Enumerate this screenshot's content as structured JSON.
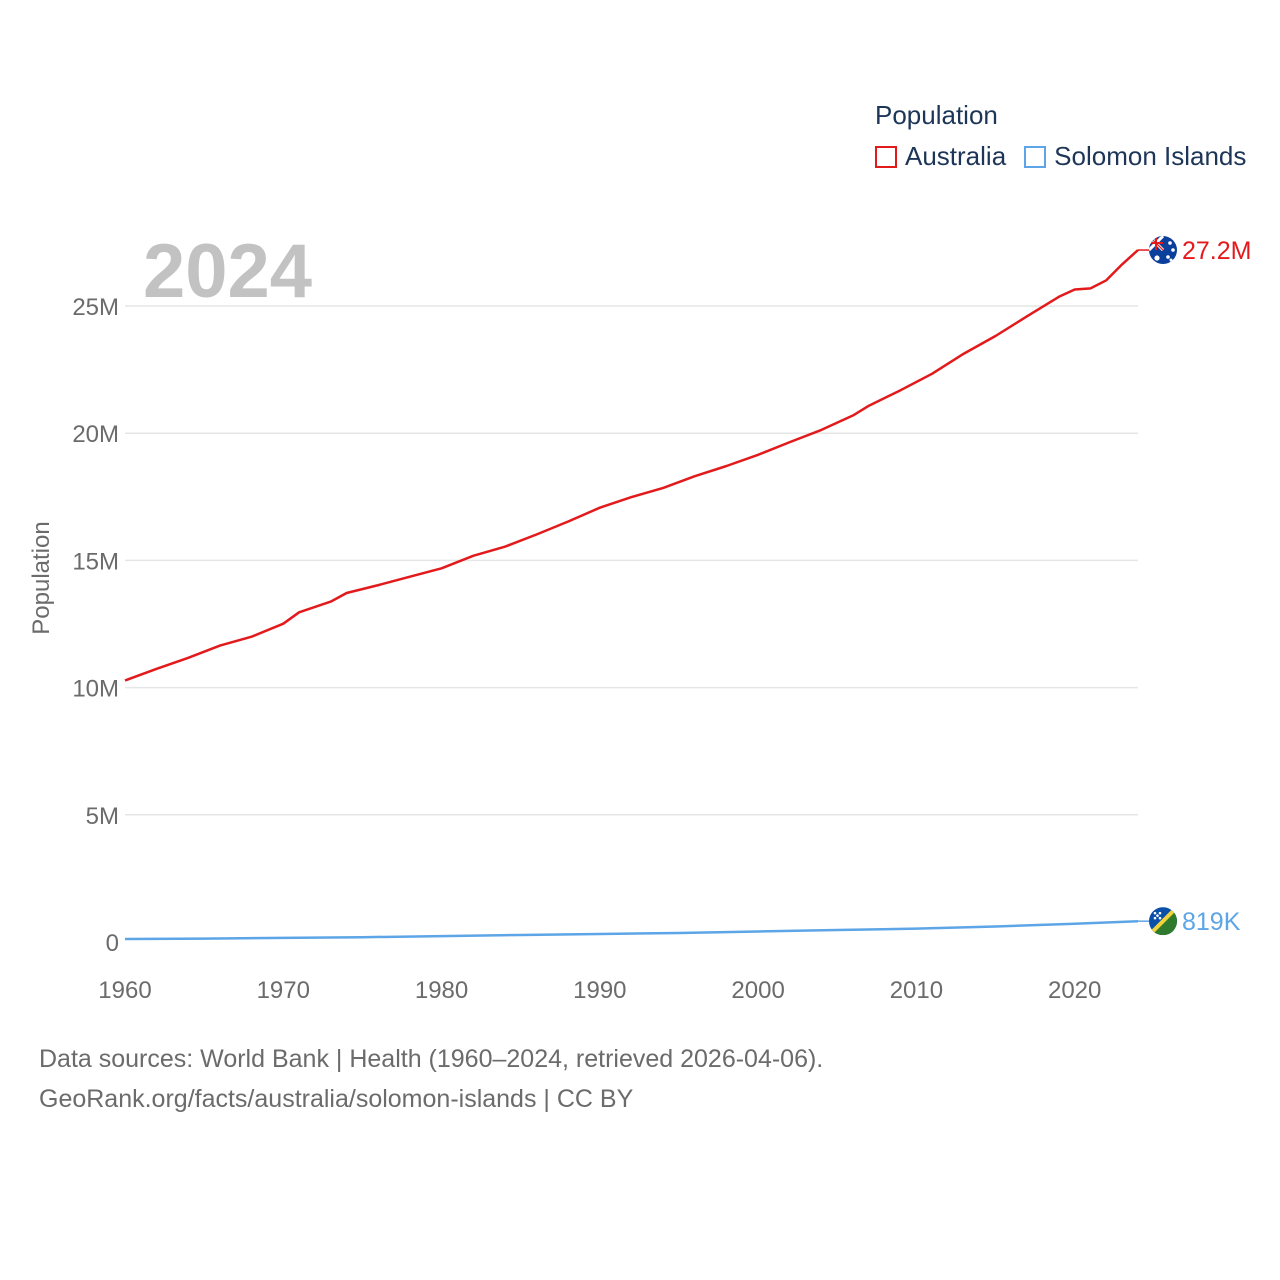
{
  "chart_data": {
    "type": "line",
    "current_year_label": "2024",
    "legend_title": "Population",
    "ylabel": "Population",
    "xlabel": "",
    "xlim": [
      1960,
      2024
    ],
    "ylim": [
      0,
      28000000
    ],
    "x_ticks": [
      1960,
      1970,
      1980,
      1990,
      2000,
      2010,
      2020
    ],
    "y_ticks": [
      {
        "value": 0,
        "label": "0"
      },
      {
        "value": 5000000,
        "label": "5M"
      },
      {
        "value": 10000000,
        "label": "10M"
      },
      {
        "value": 15000000,
        "label": "15M"
      },
      {
        "value": 20000000,
        "label": "20M"
      },
      {
        "value": 25000000,
        "label": "25M"
      }
    ],
    "series": [
      {
        "name": "Australia",
        "color": "#e31a1c",
        "end_label": "27.2M",
        "points": [
          [
            1960,
            10280000
          ],
          [
            1962,
            10740000
          ],
          [
            1964,
            11170000
          ],
          [
            1966,
            11650000
          ],
          [
            1968,
            12000000
          ],
          [
            1970,
            12510000
          ],
          [
            1971,
            12960000
          ],
          [
            1973,
            13380000
          ],
          [
            1974,
            13720000
          ],
          [
            1976,
            14030000
          ],
          [
            1978,
            14360000
          ],
          [
            1980,
            14690000
          ],
          [
            1982,
            15180000
          ],
          [
            1984,
            15540000
          ],
          [
            1986,
            16020000
          ],
          [
            1988,
            16530000
          ],
          [
            1990,
            17070000
          ],
          [
            1992,
            17490000
          ],
          [
            1994,
            17850000
          ],
          [
            1996,
            18310000
          ],
          [
            1998,
            18710000
          ],
          [
            2000,
            19150000
          ],
          [
            2002,
            19650000
          ],
          [
            2004,
            20130000
          ],
          [
            2006,
            20700000
          ],
          [
            2007,
            21080000
          ],
          [
            2009,
            21690000
          ],
          [
            2011,
            22340000
          ],
          [
            2013,
            23130000
          ],
          [
            2015,
            23820000
          ],
          [
            2017,
            24600000
          ],
          [
            2019,
            25360000
          ],
          [
            2020,
            25650000
          ],
          [
            2021,
            25690000
          ],
          [
            2022,
            26010000
          ],
          [
            2023,
            26640000
          ],
          [
            2024,
            27200000
          ]
        ]
      },
      {
        "name": "Solomon Islands",
        "color": "#5da5e6",
        "end_label": "819K",
        "points": [
          [
            1960,
            118000
          ],
          [
            1965,
            133000
          ],
          [
            1970,
            160000
          ],
          [
            1975,
            190000
          ],
          [
            1980,
            233000
          ],
          [
            1985,
            276000
          ],
          [
            1990,
            314000
          ],
          [
            1995,
            355000
          ],
          [
            2000,
            412000
          ],
          [
            2005,
            470000
          ],
          [
            2010,
            528000
          ],
          [
            2015,
            611000
          ],
          [
            2020,
            720000
          ],
          [
            2024,
            819000
          ]
        ]
      }
    ]
  },
  "footer": {
    "line1": "Data sources: World Bank | Health (1960–2024, retrieved 2026-04-06).",
    "line2": "GeoRank.org/facts/australia/solomon-islands | CC BY"
  },
  "icons": {
    "australia": "australia-flag-icon",
    "solomon": "solomon-islands-flag-icon"
  }
}
